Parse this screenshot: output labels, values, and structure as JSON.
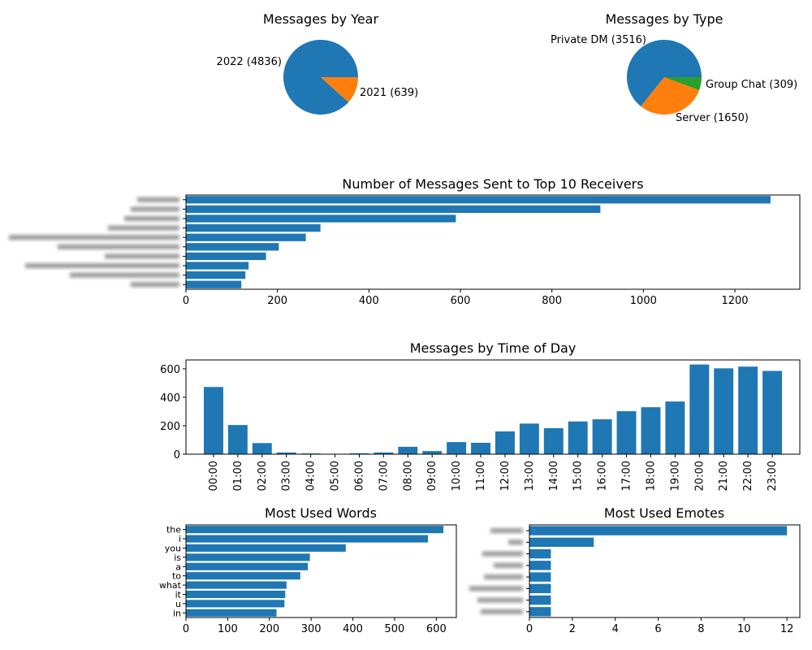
{
  "colors": {
    "blue": "#1f77b4",
    "orange": "#ff7f0e",
    "green": "#2ca02c",
    "redacted": "#9a9a9a"
  },
  "chart_data": [
    {
      "id": "year",
      "type": "pie",
      "title": "Messages by Year",
      "slices": [
        {
          "label": "2022 (4836)",
          "value": 4836
        },
        {
          "label": "2021 (639)",
          "value": 639
        }
      ]
    },
    {
      "id": "type",
      "type": "pie",
      "title": "Messages by Type",
      "slices": [
        {
          "label": "Private DM (3516)",
          "value": 3516
        },
        {
          "label": "Server (1650)",
          "value": 1650
        },
        {
          "label": "Group Chat (309)",
          "value": 309
        }
      ]
    },
    {
      "id": "receivers",
      "type": "bar",
      "orientation": "horizontal",
      "title": "Number of Messages Sent to Top 10 Receivers",
      "categories_redacted": true,
      "values": [
        1278,
        906,
        590,
        294,
        262,
        203,
        175,
        137,
        130,
        121
      ],
      "xticks": [
        0,
        200,
        400,
        600,
        800,
        1000,
        1200
      ],
      "xlim": [
        0,
        1342
      ]
    },
    {
      "id": "time",
      "type": "bar",
      "title": "Messages by Time of Day",
      "categories": [
        "00:00",
        "01:00",
        "02:00",
        "03:00",
        "04:00",
        "05:00",
        "06:00",
        "07:00",
        "08:00",
        "09:00",
        "10:00",
        "11:00",
        "12:00",
        "13:00",
        "14:00",
        "15:00",
        "16:00",
        "17:00",
        "18:00",
        "19:00",
        "20:00",
        "21:00",
        "22:00",
        "23:00"
      ],
      "values": [
        472,
        205,
        78,
        12,
        5,
        2,
        6,
        12,
        52,
        22,
        85,
        80,
        160,
        215,
        183,
        230,
        245,
        302,
        330,
        370,
        630,
        603,
        615,
        585
      ],
      "yticks": [
        0,
        200,
        400,
        600
      ],
      "ylim": [
        0,
        662
      ]
    },
    {
      "id": "words",
      "type": "bar",
      "orientation": "horizontal",
      "title": "Most Used Words",
      "categories": [
        "the",
        "i",
        "you",
        "is",
        "a",
        "to",
        "what",
        "it",
        "u",
        "in"
      ],
      "values": [
        617,
        580,
        383,
        297,
        292,
        274,
        241,
        238,
        236,
        217
      ],
      "xticks": [
        0,
        100,
        200,
        300,
        400,
        500,
        600
      ],
      "xlim": [
        0,
        648
      ]
    },
    {
      "id": "emotes",
      "type": "bar",
      "orientation": "horizontal",
      "title": "Most Used Emotes",
      "categories_redacted": true,
      "values": [
        12,
        3,
        1,
        1,
        1,
        1,
        1,
        1
      ],
      "xticks": [
        0,
        2,
        4,
        6,
        8,
        10,
        12
      ],
      "xlim": [
        0,
        12.6
      ]
    }
  ]
}
